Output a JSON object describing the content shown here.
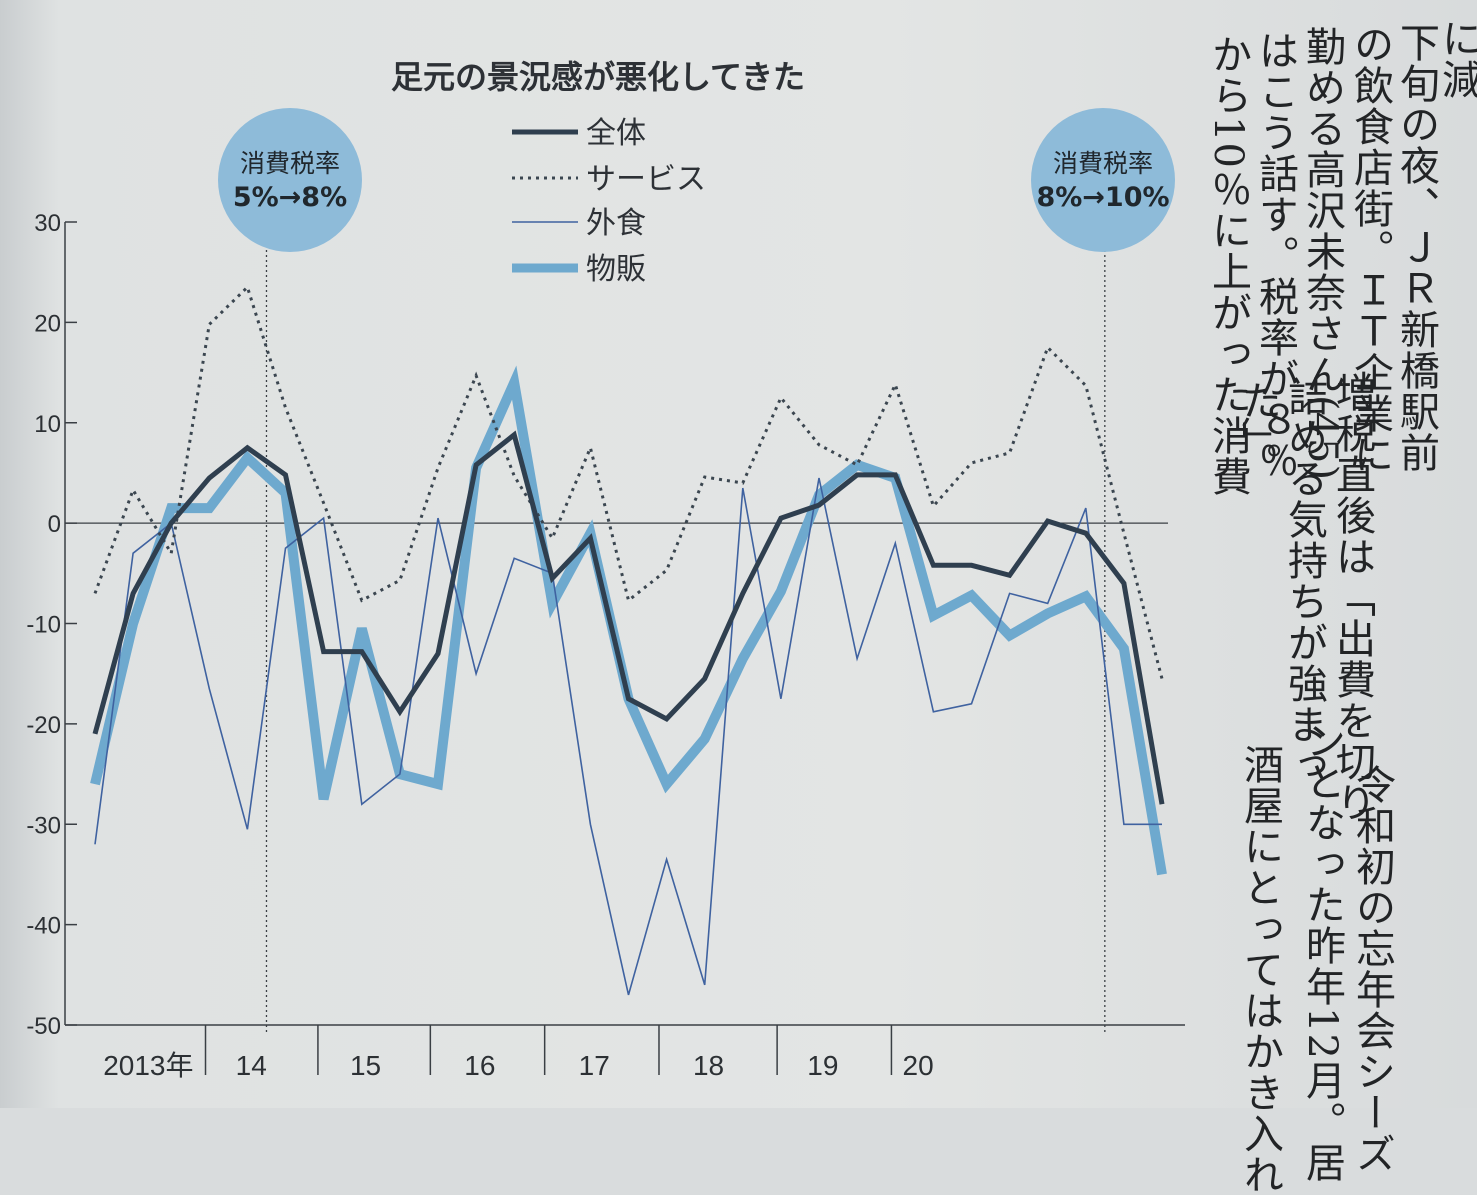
{
  "chart_data": {
    "type": "line",
    "title": "足元の景況感が悪化してきた",
    "ylim": [
      -50,
      30
    ],
    "yticks": [
      30,
      20,
      10,
      0,
      -10,
      -20,
      -30,
      -40,
      -50
    ],
    "ytick_labels": [
      "30",
      "20",
      "10",
      "0",
      "-10",
      "-20",
      "-30",
      "-40",
      "-50"
    ],
    "xlim": [
      0,
      28
    ],
    "year_labels": [
      {
        "label": "2013年",
        "x": 1.4
      },
      {
        "label": "14",
        "x": 4.1
      },
      {
        "label": "15",
        "x": 7.1
      },
      {
        "label": "16",
        "x": 10.1
      },
      {
        "label": "17",
        "x": 13.1
      },
      {
        "label": "18",
        "x": 16.1
      },
      {
        "label": "19",
        "x": 19.1
      },
      {
        "label": "20",
        "x": 21.6
      }
    ],
    "year_boundaries": [
      2.9,
      5.85,
      8.8,
      11.8,
      14.8,
      17.9,
      20.9
    ],
    "x": [
      0,
      1,
      2,
      3,
      4,
      5,
      6,
      7,
      8,
      9,
      10,
      11,
      12,
      13,
      14,
      15,
      16,
      17,
      18,
      19,
      20,
      21,
      22,
      23,
      24,
      25,
      26,
      27,
      28
    ],
    "series": [
      {
        "name": "全体",
        "color": "#2f3f4f",
        "width": 5,
        "dash": "",
        "values": [
          -21,
          -7,
          0,
          4.5,
          7.5,
          4.8,
          -12.8,
          -12.8,
          -18.8,
          -13,
          5.8,
          8.8,
          -5.5,
          -1.5,
          -17.5,
          -19.5,
          -15.5,
          -7,
          0.5,
          1.8,
          4.8,
          4.8,
          -4.2,
          -4.2,
          -5.2,
          0.2,
          -1,
          -6,
          -28
        ]
      },
      {
        "name": "サービス",
        "color": "#3b4650",
        "width": 3,
        "dash": "3,5",
        "values": [
          -7,
          3.3,
          -3,
          19.8,
          23.5,
          11.5,
          2,
          -7.7,
          -5.7,
          5.5,
          14.7,
          4.7,
          -1.5,
          7.5,
          -7.7,
          -4.7,
          4.6,
          4,
          12.5,
          7.8,
          5.8,
          13.8,
          1.7,
          6,
          7,
          17.5,
          13.7,
          -1,
          -15.5
        ]
      },
      {
        "name": "外食",
        "color": "#3f62a0",
        "width": 1.6,
        "dash": "",
        "values": [
          -32,
          -3,
          0,
          -16.5,
          -30.5,
          -2.5,
          0.5,
          -28,
          -25,
          0.5,
          -15,
          -3.5,
          -5,
          -30,
          -47,
          -33.5,
          -46,
          3.5,
          -17.5,
          4.5,
          -13.5,
          -2,
          -18.8,
          -18,
          -7,
          -8,
          1.5,
          -30,
          -30
        ]
      },
      {
        "name": "物販",
        "color": "#6ea9ce",
        "width": 10,
        "dash": "",
        "values": [
          -26,
          -10,
          1.5,
          1.5,
          6.5,
          3,
          -27.5,
          -10.5,
          -25,
          -26,
          5.5,
          14,
          -8,
          -1,
          -17.5,
          -26,
          -21.5,
          -13.5,
          -6.8,
          2.8,
          5.8,
          4.5,
          -9.2,
          -7.2,
          -11.2,
          -9,
          -7.3,
          -12.5,
          -35
        ]
      }
    ],
    "annotations": [
      {
        "line1": "消費税率",
        "line2": "5%→8%",
        "x": 4.5
      },
      {
        "line1": "消費税率",
        "line2": "8%→10%",
        "x": 26.5
      }
    ],
    "legend": "top-center"
  },
  "article": {
    "columns": [
      "に減",
      "下旬の夜、ＪＲ新橋駅前",
      "の飲食店街。ＩＴ企業に",
      "勤める高沢未奈さん(45)",
      "はこう話す。税率が８％",
      "から10％に上がった消費",
      "増税直後は「出費を切り",
      "詰める気持ちが強まっ",
      "た」。",
      "令和初の忘年会シーズ",
      "ンとなった昨年12月。居",
      "酒屋にとってはかき入れ"
    ]
  }
}
